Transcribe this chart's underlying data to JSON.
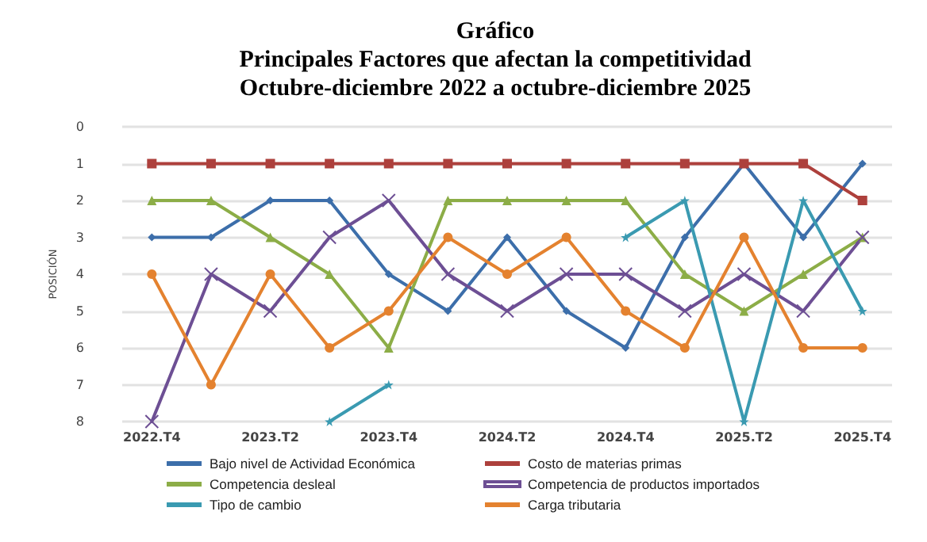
{
  "chart_data": {
    "type": "line",
    "title": "Gráfico\nPrincipales Factores que afectan la competitividad\nOctubre-diciembre 2022 a octubre-diciembre 2025",
    "ylabel": "POSICIÓN",
    "categories": [
      "2022.T4",
      null,
      "2023.T2",
      null,
      "2023.T4",
      null,
      "2024.T2",
      null,
      "2024.T4",
      null,
      "2025.T2",
      null,
      "2025.T4"
    ],
    "series": [
      {
        "name": "Bajo nivel de Actividad Económica",
        "color": "#3c6eaa",
        "marker": "diamond",
        "values": [
          3,
          3,
          2,
          2,
          4,
          5,
          3,
          5,
          6,
          3,
          1,
          3,
          1
        ]
      },
      {
        "name": "Costo de materias primas",
        "color": "#ad403c",
        "marker": "square",
        "values": [
          1,
          1,
          1,
          1,
          1,
          1,
          1,
          1,
          1,
          1,
          1,
          1,
          2
        ]
      },
      {
        "name": "Competencia desleal",
        "color": "#8cad47",
        "marker": "triangle",
        "values": [
          2,
          2,
          3,
          4,
          6,
          2,
          2,
          2,
          2,
          4,
          5,
          4,
          3
        ]
      },
      {
        "name": "Competencia de productos importados",
        "color": "#6d4f94",
        "marker": "cross",
        "values": [
          8,
          4,
          5,
          3,
          2,
          4,
          5,
          4,
          4,
          5,
          4,
          5,
          3
        ]
      },
      {
        "name": "Tipo de cambio",
        "color": "#3a9ab1",
        "marker": "star",
        "values": [
          null,
          null,
          null,
          8,
          7,
          null,
          null,
          null,
          3,
          2,
          8,
          2,
          5
        ]
      },
      {
        "name": "Carga tributaria",
        "color": "#e4822f",
        "marker": "circle",
        "values": [
          4,
          7,
          4,
          6,
          5,
          3,
          4,
          3,
          5,
          6,
          3,
          6,
          6
        ]
      }
    ],
    "ylim": [
      8,
      0
    ],
    "yticks": [
      0,
      1,
      2,
      3,
      4,
      5,
      6,
      7,
      8
    ],
    "grid": "y",
    "legend": "bottom",
    "line_style": "solid"
  }
}
